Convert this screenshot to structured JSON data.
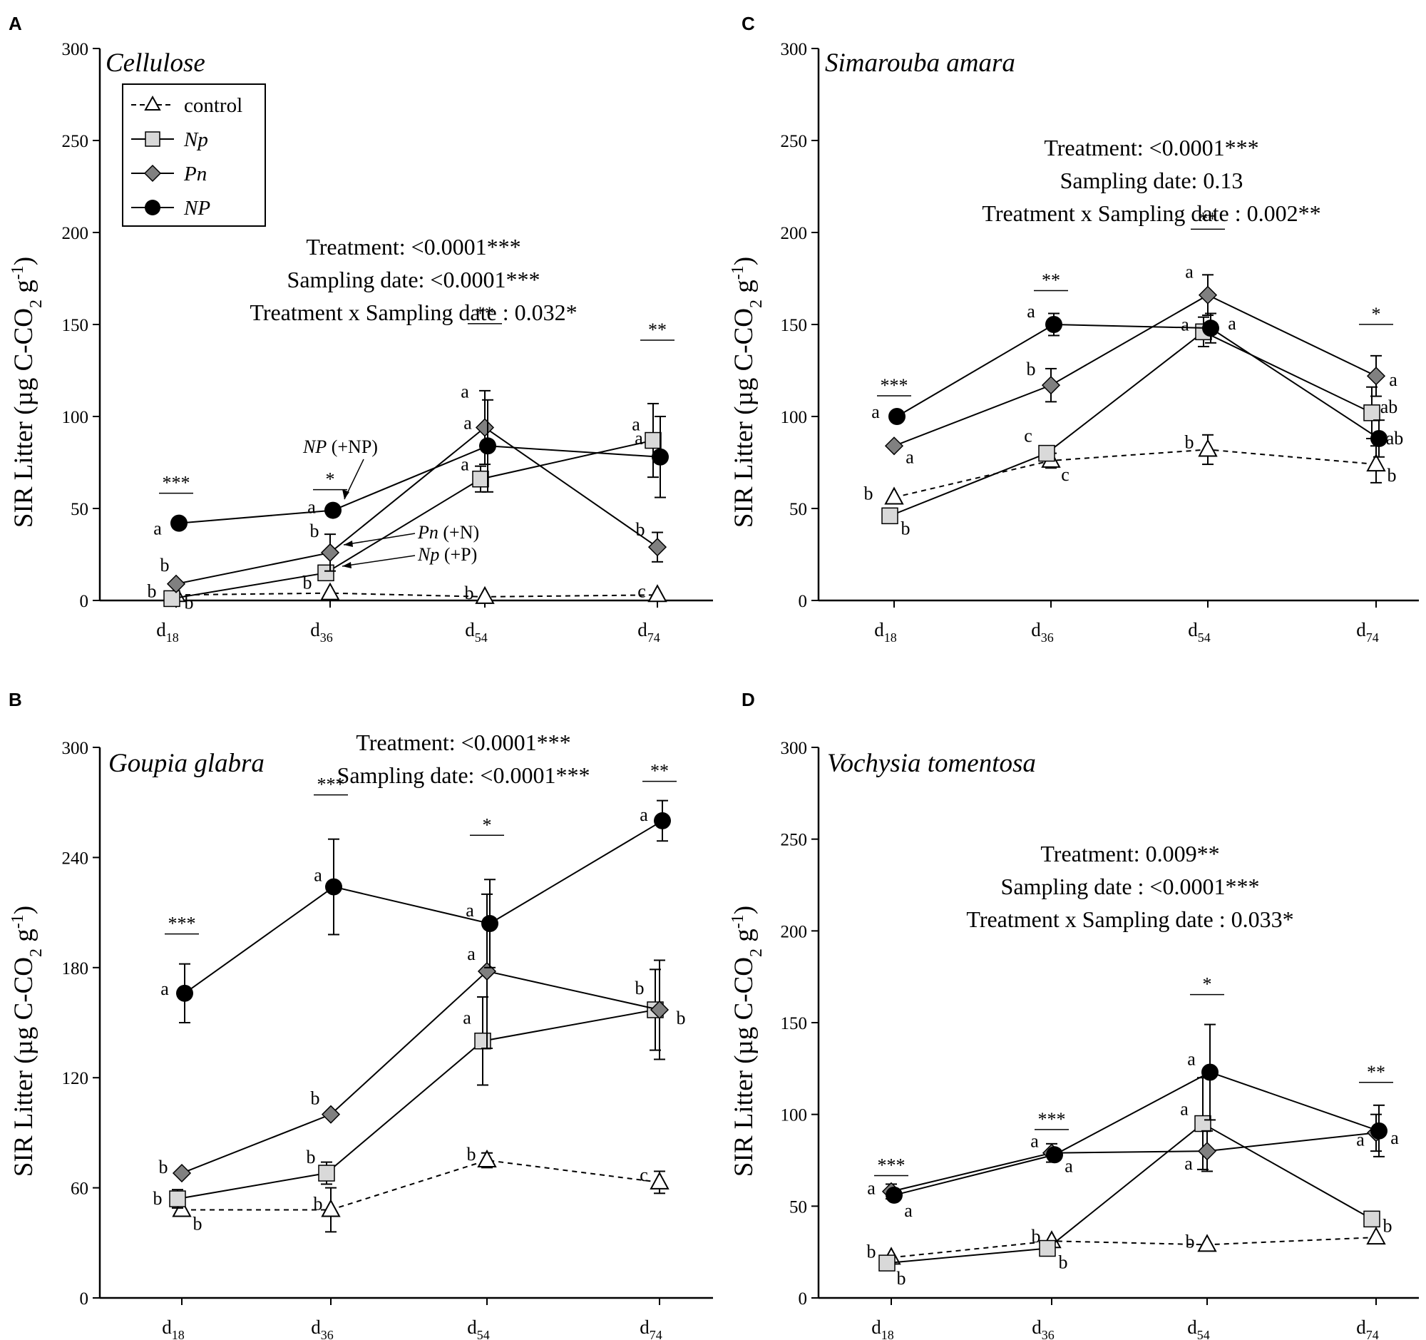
{
  "figure": {
    "ylabel_text": "SIR Litter (µg C-CO",
    "ylabel_sub": "2",
    "ylabel_unit": " g",
    "ylabel_sup": "-1",
    "ylabel_close": ")"
  },
  "legend": {
    "items": [
      {
        "key": "control",
        "label": "control"
      },
      {
        "key": "Np",
        "label": "Np"
      },
      {
        "key": "Pn",
        "label": "Pn"
      },
      {
        "key": "NP",
        "label": "NP"
      }
    ]
  },
  "callouts": {
    "np_italic": "NP",
    "np_rest": " (+NP)",
    "pn_italic": "Pn",
    "pn_rest": " (+N)",
    "npl_italic": "Np",
    "npl_rest": " (+P)"
  },
  "colors": {
    "control_fill": "#ffffff",
    "Np_fill": "#d9d9d9",
    "Pn_fill": "#808080",
    "NP_fill": "#000000",
    "line": "#000000"
  },
  "chart_data": [
    {
      "panel": "A",
      "type": "line",
      "title": "Cellulose",
      "x_labels": [
        {
          "main": "d",
          "sub": "18"
        },
        {
          "main": "d",
          "sub": "36"
        },
        {
          "main": "d",
          "sub": "54"
        },
        {
          "main": "d",
          "sub": "74"
        }
      ],
      "ylim": [
        0,
        300
      ],
      "yticks": [
        0,
        50,
        100,
        150,
        200,
        250,
        300
      ],
      "xlabel": "",
      "ylabel": "SIR Litter (µg C-CO2 g-1)",
      "stats": [
        "Treatment: <0.0001***",
        "Sampling date: <0.0001***",
        "Treatment x Sampling date : 0.032*"
      ],
      "significance": [
        "***",
        "*",
        "**",
        "**"
      ],
      "series": [
        {
          "name": "control",
          "values": [
            3,
            4,
            2,
            3
          ],
          "errors": [
            0,
            0,
            0,
            0
          ],
          "letters": [
            "b",
            "",
            "b",
            "c"
          ]
        },
        {
          "name": "Np",
          "values": [
            1,
            15,
            66,
            87
          ],
          "errors": [
            0,
            0,
            7,
            20
          ],
          "letters": [
            "b",
            "b",
            "a",
            "a"
          ]
        },
        {
          "name": "Pn",
          "values": [
            9,
            26,
            94,
            29
          ],
          "errors": [
            0,
            10,
            20,
            8
          ],
          "letters": [
            "b",
            "b",
            "a",
            "b"
          ]
        },
        {
          "name": "NP",
          "values": [
            42,
            49,
            84,
            78
          ],
          "errors": [
            0,
            0,
            25,
            22
          ],
          "letters": [
            "a",
            "a",
            "a",
            "a"
          ]
        }
      ]
    },
    {
      "panel": "C",
      "type": "line",
      "title": "Simarouba amara",
      "x_labels": [
        {
          "main": "d",
          "sub": "18"
        },
        {
          "main": "d",
          "sub": "36"
        },
        {
          "main": "d",
          "sub": "54"
        },
        {
          "main": "d",
          "sub": "74"
        }
      ],
      "ylim": [
        0,
        300
      ],
      "yticks": [
        0,
        50,
        100,
        150,
        200,
        250,
        300
      ],
      "xlabel": "",
      "ylabel": "SIR Litter (µg C-CO2 g-1)",
      "stats": [
        "Treatment: <0.0001***",
        "Sampling date: 0.13",
        "Treatment x Sampling date : 0.002**"
      ],
      "significance": [
        "***",
        "**",
        "**",
        "*"
      ],
      "series": [
        {
          "name": "control",
          "values": [
            56,
            76,
            82,
            74
          ],
          "errors": [
            0,
            4,
            8,
            10
          ],
          "letters": [
            "b",
            "c",
            "b",
            "b"
          ]
        },
        {
          "name": "Np",
          "values": [
            46,
            80,
            146,
            102
          ],
          "errors": [
            0,
            0,
            8,
            14
          ],
          "letters": [
            "b",
            "c",
            "a",
            "ab"
          ]
        },
        {
          "name": "Pn",
          "values": [
            84,
            117,
            166,
            122
          ],
          "errors": [
            0,
            9,
            11,
            11
          ],
          "letters": [
            "a",
            "b",
            "a",
            "a"
          ]
        },
        {
          "name": "NP",
          "values": [
            100,
            150,
            148,
            88
          ],
          "errors": [
            0,
            6,
            8,
            10
          ],
          "letters": [
            "a",
            "a",
            "a",
            "ab"
          ]
        }
      ]
    },
    {
      "panel": "B",
      "type": "line",
      "title": "Goupia glabra",
      "x_labels": [
        {
          "main": "d",
          "sub": "18"
        },
        {
          "main": "d",
          "sub": "36"
        },
        {
          "main": "d",
          "sub": "54"
        },
        {
          "main": "d",
          "sub": "74"
        }
      ],
      "ylim": [
        0,
        300
      ],
      "yticks": [
        0,
        60,
        120,
        180,
        240,
        300
      ],
      "xlabel": "",
      "ylabel": "SIR Litter (µg C-CO2 g-1)",
      "stats": [
        "Treatment:  <0.0001***",
        "Sampling date: <0.0001***"
      ],
      "significance": [
        "***",
        "***",
        "*",
        "**"
      ],
      "series": [
        {
          "name": "control",
          "values": [
            48,
            48,
            75,
            63
          ],
          "errors": [
            0,
            12,
            4,
            6
          ],
          "letters": [
            "b",
            "b",
            "b",
            "c"
          ]
        },
        {
          "name": "Np",
          "values": [
            54,
            68,
            140,
            157
          ],
          "errors": [
            5,
            6,
            24,
            22
          ],
          "letters": [
            "b",
            "b",
            "a",
            "b"
          ]
        },
        {
          "name": "Pn",
          "values": [
            68,
            100,
            178,
            157
          ],
          "errors": [
            0,
            0,
            42,
            27
          ],
          "letters": [
            "b",
            "b",
            "a",
            "b"
          ]
        },
        {
          "name": "NP",
          "values": [
            166,
            224,
            204,
            260
          ],
          "errors": [
            16,
            26,
            24,
            11
          ],
          "letters": [
            "a",
            "a",
            "a",
            "a"
          ]
        }
      ]
    },
    {
      "panel": "D",
      "type": "line",
      "title": "Vochysia tomentosa",
      "x_labels": [
        {
          "main": "d",
          "sub": "18"
        },
        {
          "main": "d",
          "sub": "36"
        },
        {
          "main": "d",
          "sub": "54"
        },
        {
          "main": "d",
          "sub": "74"
        }
      ],
      "ylim": [
        0,
        300
      ],
      "yticks": [
        0,
        50,
        100,
        150,
        200,
        250,
        300
      ],
      "xlabel": "",
      "ylabel": "SIR Litter (µg C-CO2 g-1)",
      "stats": [
        "Treatment: 0.009**",
        "Sampling date : <0.0001***",
        "Treatment x Sampling date : 0.033*"
      ],
      "significance": [
        "***",
        "***",
        "*",
        "**"
      ],
      "series": [
        {
          "name": "control",
          "values": [
            22,
            31,
            29,
            33
          ],
          "errors": [
            0,
            0,
            0,
            0
          ],
          "letters": [
            "b",
            "b",
            "b",
            ""
          ]
        },
        {
          "name": "Np",
          "values": [
            19,
            27,
            95,
            43
          ],
          "errors": [
            0,
            0,
            25,
            0
          ],
          "letters": [
            "b",
            "b",
            "a",
            "b"
          ]
        },
        {
          "name": "Pn",
          "values": [
            58,
            79,
            80,
            90
          ],
          "errors": [
            4,
            5,
            11,
            10
          ],
          "letters": [
            "a",
            "a",
            "a",
            "a"
          ]
        },
        {
          "name": "NP",
          "values": [
            56,
            78,
            123,
            91
          ],
          "errors": [
            0,
            0,
            26,
            14
          ],
          "letters": [
            "a",
            "a",
            "a",
            "a"
          ]
        }
      ]
    }
  ]
}
